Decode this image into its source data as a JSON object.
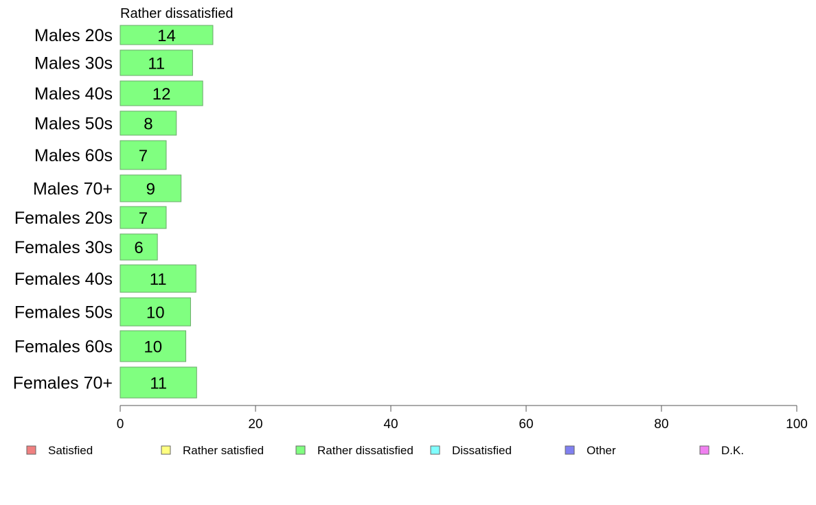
{
  "chart_data": {
    "type": "bar",
    "orientation": "horizontal",
    "title": "Rather dissatisfied",
    "categories": [
      "Males 20s",
      "Males 30s",
      "Males 40s",
      "Males 50s",
      "Males 60s",
      "Males 70+",
      "Females 20s",
      "Females 30s",
      "Females 40s",
      "Females 50s",
      "Females 60s",
      "Females 70+"
    ],
    "values": [
      14,
      11,
      12,
      8,
      7,
      9,
      7,
      6,
      11,
      10,
      10,
      11
    ],
    "value_labels": [
      "14",
      "11",
      "12",
      "8",
      "7",
      "9",
      "7",
      "6",
      "11",
      "10",
      "10",
      "11"
    ],
    "bar_values": [
      13.7,
      10.7,
      12.2,
      8.3,
      6.8,
      9.0,
      6.8,
      5.5,
      11.2,
      10.4,
      9.7,
      11.3
    ],
    "xlim": [
      0,
      100
    ],
    "xticks": [
      "0",
      "20",
      "40",
      "60",
      "80",
      "100"
    ],
    "grid": false,
    "bar_color": "#80ff80",
    "bar_stroke": "#6aa86a",
    "legend_position": "bottom",
    "legend": [
      {
        "label": "Satisfied",
        "color": "#f08080"
      },
      {
        "label": "Rather satisfied",
        "color": "#ffff80"
      },
      {
        "label": "Rather dissatisfied",
        "color": "#80ff80"
      },
      {
        "label": "Dissatisfied",
        "color": "#80ffff"
      },
      {
        "label": "Other",
        "color": "#8080f0"
      },
      {
        "label": "D.K.",
        "color": "#f080f0"
      }
    ]
  }
}
